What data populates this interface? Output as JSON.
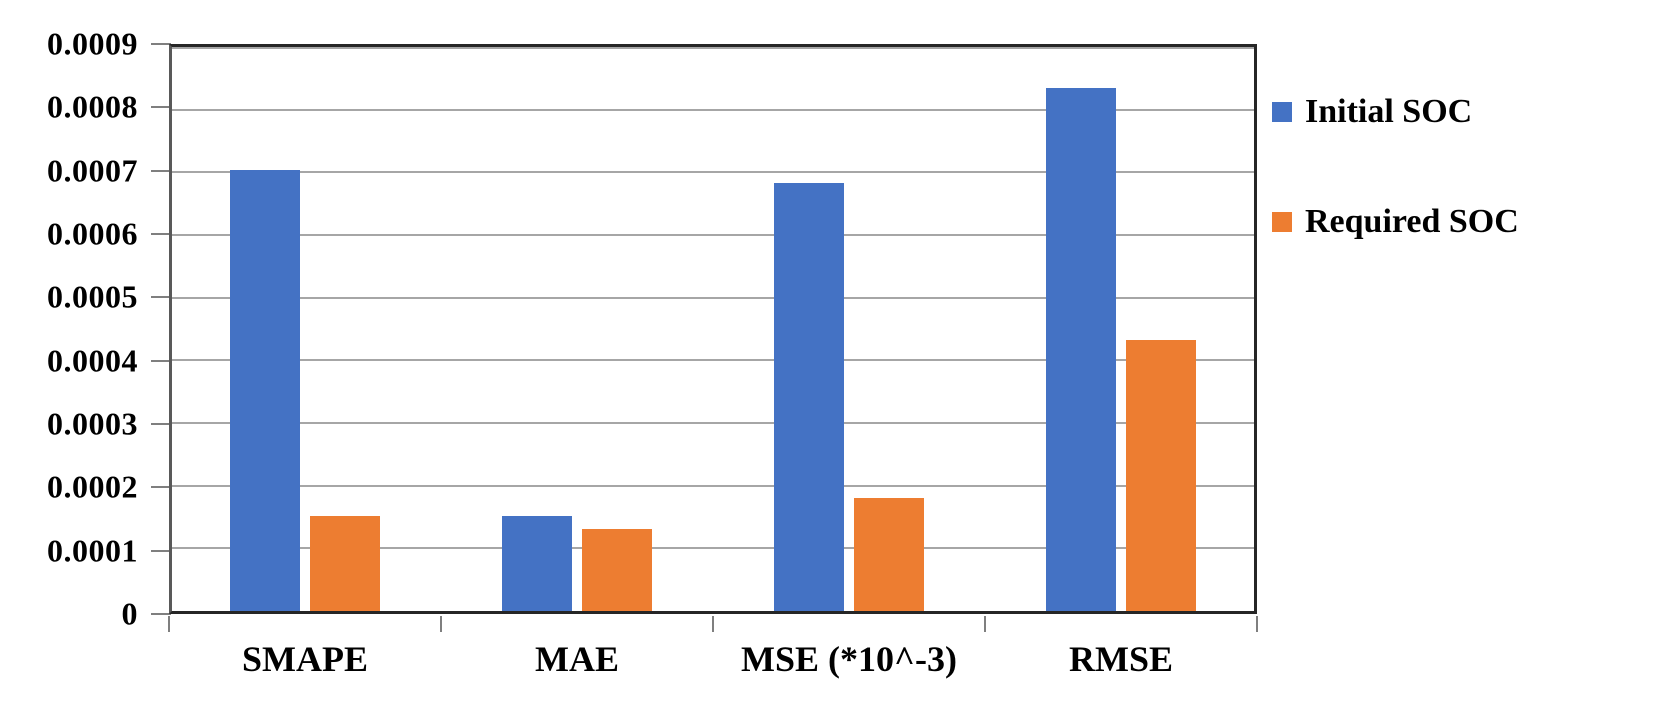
{
  "chart_data": {
    "type": "bar",
    "title": "",
    "xlabel": "",
    "ylabel": "",
    "categories": [
      "SMAPE",
      "MAE",
      "MSE (*10^-3)",
      "RMSE"
    ],
    "series": [
      {
        "name": "Initial SOC",
        "color": "#4472C4",
        "values": [
          0.0007,
          0.00015,
          0.00068,
          0.00083
        ]
      },
      {
        "name": "Required SOC",
        "color": "#ED7D31",
        "values": [
          0.00015,
          0.00013,
          0.00018,
          0.00043
        ]
      }
    ],
    "ylim": [
      0,
      0.0009
    ],
    "ytick_step": 0.0001,
    "ytick_labels": [
      "0",
      "0.0001",
      "0.0002",
      "0.0003",
      "0.0004",
      "0.0005",
      "0.0006",
      "0.0007",
      "0.0008",
      "0.0009"
    ],
    "grid": true,
    "legend_position": "right"
  },
  "legend": {
    "items": [
      {
        "label": "Initial SOC",
        "swatch_color": "#4472C4",
        "swatch_icon": "square-swatch-icon"
      },
      {
        "label": "Required SOC",
        "swatch_color": "#ED7D31",
        "swatch_icon": "square-swatch-icon"
      }
    ]
  },
  "colors": {
    "background": "#FFFFFF",
    "gridline": "#A6A6A6",
    "frame": "#262626",
    "axis_left": "#595959",
    "tick": "#7F7F7F",
    "text": "#000000",
    "series_blue": "#4472C4",
    "series_orange": "#ED7D31"
  }
}
